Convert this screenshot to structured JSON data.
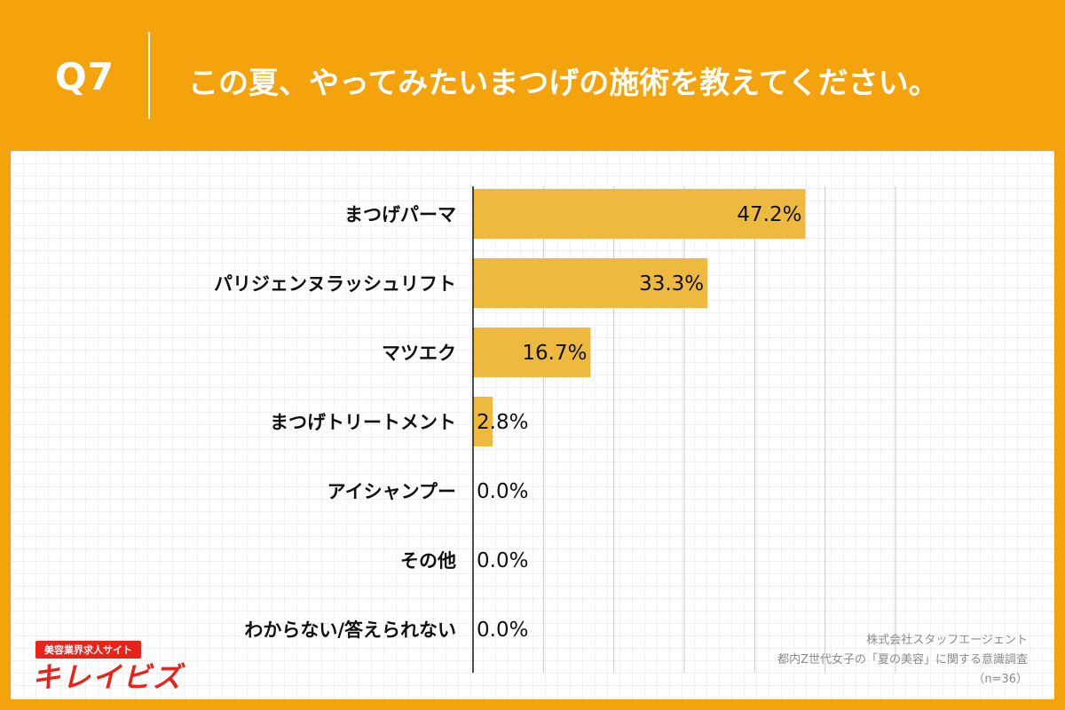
{
  "header": {
    "question_number": "Q7",
    "question_text": "この夏、やってみたいまつげの施術を教えてください。"
  },
  "chart_data": {
    "type": "bar",
    "orientation": "horizontal",
    "categories": [
      "まつげパーマ",
      "パリジェンヌラッシュリフト",
      "マツエク",
      "まつげトリートメント",
      "アイシャンプー",
      "その他",
      "わからない/答えられない"
    ],
    "values": [
      47.2,
      33.3,
      16.7,
      2.8,
      0.0,
      0.0,
      0.0
    ],
    "value_labels": [
      "47.2%",
      "33.3%",
      "16.7%",
      "2.8%",
      "0.0%",
      "0.0%",
      "0.0%"
    ],
    "xlim": [
      0,
      60
    ],
    "grid": true,
    "bar_color": "#EDB93F"
  },
  "logo": {
    "tagline": "美容業界求人サイト",
    "name": "キレイビズ",
    "color": "#E8231A"
  },
  "source": {
    "company": "株式会社スタッフエージェント",
    "survey": "都内Z世代女子の「夏の美容」に関する意識調査",
    "sample": "（n=36）"
  },
  "colors": {
    "background": "#F5A30C",
    "panel": "#ffffff"
  }
}
